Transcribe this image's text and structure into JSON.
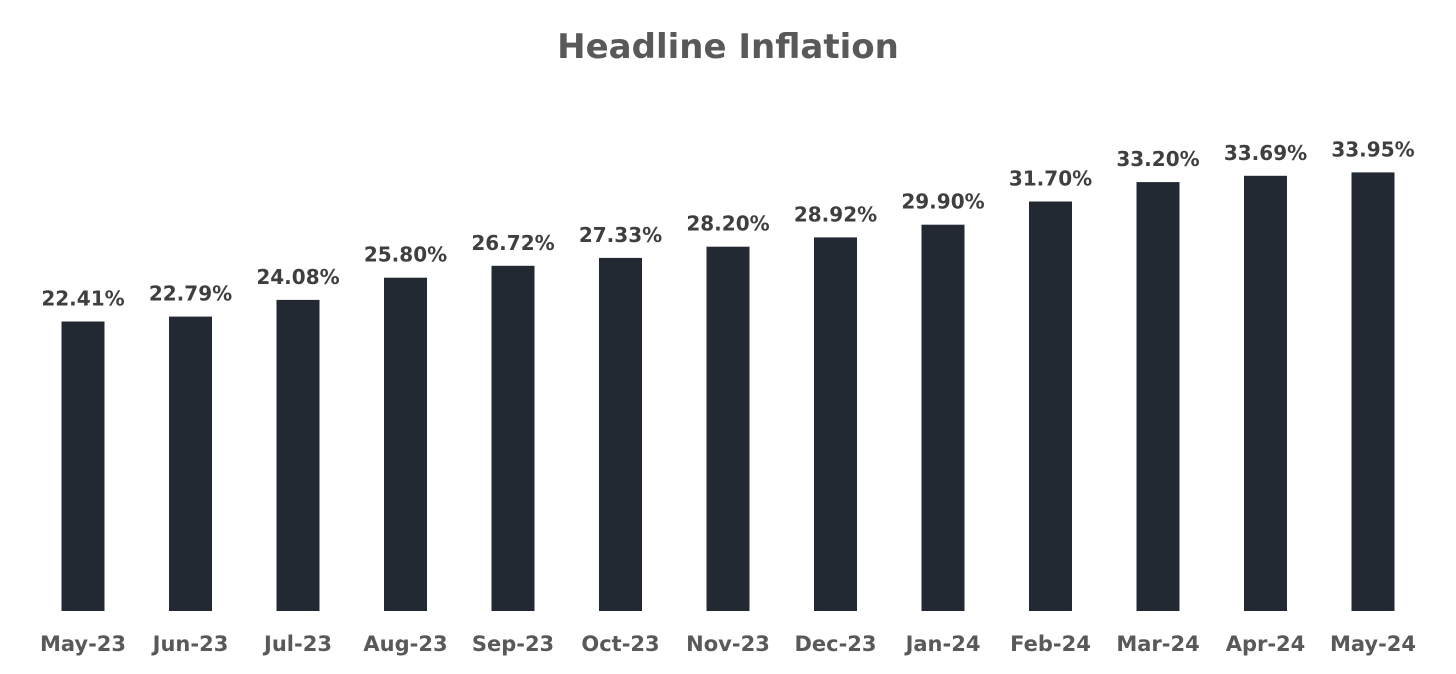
{
  "chart_data": {
    "type": "bar",
    "title": "Headline Inflation",
    "xlabel": "",
    "ylabel": "",
    "categories": [
      "May-23",
      "Jun-23",
      "Jul-23",
      "Aug-23",
      "Sep-23",
      "Oct-23",
      "Nov-23",
      "Dec-23",
      "Jan-24",
      "Feb-24",
      "Mar-24",
      "Apr-24",
      "May-24"
    ],
    "values": [
      22.41,
      22.79,
      24.08,
      25.8,
      26.72,
      27.33,
      28.2,
      28.92,
      29.9,
      31.7,
      33.2,
      33.69,
      33.95
    ],
    "data_labels": [
      "22.41%",
      "22.79%",
      "24.08%",
      "25.80%",
      "26.72%",
      "27.33%",
      "28.20%",
      "28.92%",
      "29.90%",
      "31.70%",
      "33.20%",
      "33.69%",
      "33.95%"
    ],
    "ylim": [
      0,
      37
    ],
    "grid": false,
    "legend": "none",
    "colors": {
      "bar": "#232933",
      "title": "#595959",
      "data_label": "#3f3f3f",
      "tick_label": "#595959"
    }
  }
}
